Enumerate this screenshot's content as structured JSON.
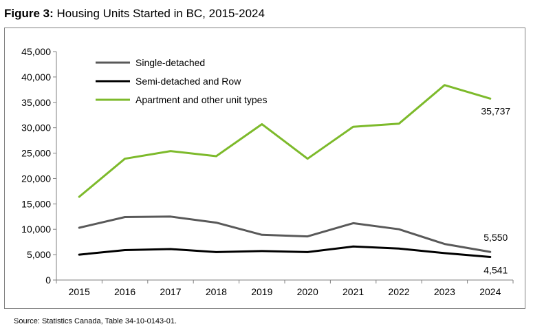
{
  "figure": {
    "label": "Figure 3:",
    "title": "Housing Units Started in BC, 2015-2024"
  },
  "source": "Source: Statistics Canada, Table 34-10-0143-01.",
  "chart_data": {
    "type": "line",
    "title": "Housing Units Started in BC, 2015-2024",
    "xlabel": "",
    "ylabel": "",
    "categories": [
      "2015",
      "2016",
      "2017",
      "2018",
      "2019",
      "2020",
      "2021",
      "2022",
      "2023",
      "2024"
    ],
    "ylim": [
      0,
      45000
    ],
    "yticks": [
      0,
      5000,
      10000,
      15000,
      20000,
      25000,
      30000,
      35000,
      40000,
      45000
    ],
    "ytick_labels": [
      "0",
      "5,000",
      "10,000",
      "15,000",
      "20,000",
      "25,000",
      "30,000",
      "35,000",
      "40,000",
      "45,000"
    ],
    "legend_position": "top-left",
    "grid": false,
    "series": [
      {
        "name": "Single-detached",
        "color": "#595959",
        "values": [
          10300,
          12400,
          12500,
          11300,
          8900,
          8600,
          11200,
          10000,
          7100,
          5550
        ],
        "end_label": "5,550"
      },
      {
        "name": "Semi-detached and Row",
        "color": "#000000",
        "values": [
          5000,
          5900,
          6100,
          5500,
          5700,
          5500,
          6600,
          6200,
          5300,
          4541
        ],
        "end_label": "4,541"
      },
      {
        "name": "Apartment and other unit types",
        "color": "#7dba2b",
        "values": [
          16400,
          23900,
          25400,
          24400,
          30700,
          23900,
          30200,
          30800,
          38400,
          35737
        ],
        "end_label": "35,737"
      }
    ]
  }
}
